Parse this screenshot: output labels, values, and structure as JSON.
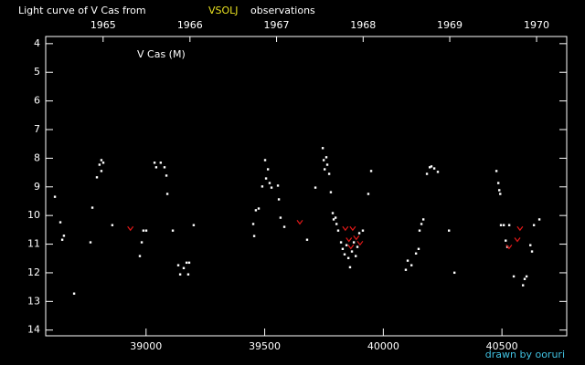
{
  "chart_data": {
    "type": "scatter",
    "title": "Light curve of V Cas from",
    "title_source": "VSOLJ",
    "title_source_color": "#e8e020",
    "title_suffix": "observations",
    "label": "V Cas (M)",
    "credit": "drawn by ooruri",
    "credit_color": "#40c0e0",
    "xlim": [
      38577,
      40773
    ],
    "xticks": [
      39000,
      39500,
      40000,
      40500
    ],
    "x2ticks": [
      {
        "value": 38819,
        "label": "1965"
      },
      {
        "value": 39185,
        "label": "1966"
      },
      {
        "value": 39550,
        "label": "1967"
      },
      {
        "value": 39915,
        "label": "1968"
      },
      {
        "value": 40280,
        "label": "1969"
      },
      {
        "value": 40646,
        "label": "1970"
      }
    ],
    "ylim": [
      3.75,
      14.2
    ],
    "y_inverted": true,
    "yticks": [
      4,
      5,
      6,
      7,
      8,
      9,
      10,
      11,
      12,
      13,
      14
    ],
    "series": [
      {
        "color": "#ffffff",
        "marker": "dot",
        "x": [
          38615,
          38638,
          38646,
          38653,
          38696,
          38765,
          38773,
          38792,
          38803,
          38811,
          38819,
          38811,
          38857,
          38973,
          38981,
          38988,
          39000,
          39035,
          39042,
          39061,
          39077,
          39085,
          39089,
          39112,
          39135,
          39143,
          39158,
          39170,
          39177,
          39181,
          39200,
          39451,
          39455,
          39462,
          39474,
          39489,
          39501,
          39505,
          39513,
          39520,
          39528,
          39555,
          39559,
          39566,
          39582,
          39678,
          39713,
          39744,
          39748,
          39752,
          39759,
          39763,
          39771,
          39778,
          39786,
          39790,
          39798,
          39802,
          39809,
          39821,
          39828,
          39836,
          39844,
          39852,
          39859,
          39867,
          39875,
          39883,
          39890,
          39898,
          39913,
          39936,
          39948,
          40094,
          40102,
          40118,
          40137,
          40148,
          40152,
          40160,
          40168,
          40183,
          40195,
          40202,
          40214,
          40229,
          40276,
          40299,
          40476,
          40484,
          40488,
          40492,
          40495,
          40507,
          40515,
          40522,
          40530,
          40549,
          40588,
          40595,
          40603,
          40619,
          40626,
          40634,
          40657
        ],
        "values": [
          9.34,
          10.23,
          10.84,
          10.7,
          12.72,
          10.93,
          9.72,
          8.66,
          8.22,
          8.06,
          8.15,
          8.44,
          10.33,
          11.41,
          10.93,
          10.52,
          10.52,
          8.15,
          8.31,
          8.15,
          8.31,
          8.6,
          9.24,
          10.52,
          11.73,
          12.05,
          11.83,
          11.64,
          12.05,
          11.64,
          10.33,
          10.29,
          10.71,
          9.81,
          9.75,
          8.98,
          8.06,
          8.7,
          8.38,
          8.86,
          9.02,
          8.95,
          9.43,
          10.07,
          10.39,
          10.84,
          9.02,
          7.64,
          8.06,
          8.38,
          7.96,
          8.22,
          8.54,
          9.18,
          9.91,
          10.13,
          10.07,
          10.29,
          10.52,
          10.93,
          11.16,
          11.35,
          11.03,
          11.48,
          11.8,
          11.25,
          10.93,
          11.41,
          11.09,
          10.61,
          10.52,
          9.24,
          8.44,
          11.89,
          11.57,
          11.73,
          11.32,
          11.16,
          10.52,
          10.29,
          10.13,
          8.54,
          8.31,
          8.28,
          8.35,
          8.47,
          10.52,
          11.99,
          8.44,
          8.86,
          9.11,
          9.24,
          10.33,
          10.33,
          10.87,
          11.09,
          10.33,
          12.12,
          12.43,
          12.21,
          12.12,
          11.03,
          11.25,
          10.33,
          10.13
        ]
      },
      {
        "color": "#e01818",
        "marker": "vee",
        "x": [
          38934,
          39648,
          39840,
          39855,
          39871,
          39886,
          39902,
          39863,
          40530,
          40565,
          40576
        ],
        "values": [
          10.45,
          10.23,
          10.45,
          10.84,
          10.45,
          10.77,
          10.96,
          11.09,
          11.09,
          10.84,
          10.45
        ]
      }
    ]
  }
}
